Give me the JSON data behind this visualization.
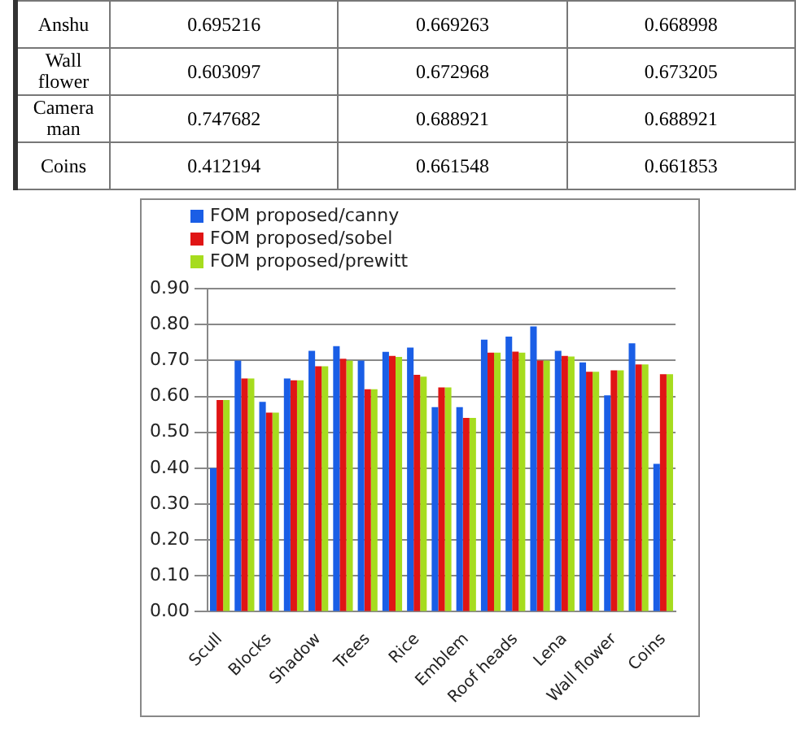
{
  "chart_data": [
    {
      "type": "other",
      "categories": [
        "Anshu",
        "Wall flower",
        "Camera man",
        "Coins"
      ],
      "series": [
        {
          "values": [
            0.695216,
            0.603097,
            0.747682,
            0.412194
          ]
        },
        {
          "values": [
            0.669263,
            0.672968,
            0.688921,
            0.661548
          ]
        },
        {
          "values": [
            0.668998,
            0.673205,
            0.688921,
            0.661853
          ]
        }
      ],
      "data_labels": true
    },
    {
      "type": "bar",
      "categories": [
        "Scull",
        null,
        "Blocks",
        null,
        "Shadow",
        null,
        "Trees",
        null,
        "Rice",
        null,
        "Emblem",
        null,
        "Roof heads",
        null,
        "Lena",
        null,
        "Wall flower",
        null,
        "Coins"
      ],
      "series": [
        {
          "name": "FOM proposed/canny",
          "color": "#1a5ee6",
          "values": [
            0.4,
            0.7,
            0.585,
            0.65,
            0.727,
            0.74,
            0.7,
            0.724,
            0.736,
            0.57,
            0.57,
            0.758,
            0.767,
            0.795,
            0.727,
            0.695,
            0.603,
            0.748,
            0.412
          ]
        },
        {
          "name": "FOM proposed/sobel",
          "color": "#e01515",
          "values": [
            0.59,
            0.65,
            0.555,
            0.645,
            0.684,
            0.705,
            0.62,
            0.713,
            0.66,
            0.625,
            0.54,
            0.722,
            0.725,
            0.7,
            0.713,
            0.669,
            0.673,
            0.689,
            0.662
          ]
        },
        {
          "name": "FOM proposed/prewitt",
          "color": "#a6dc1e",
          "values": [
            0.59,
            0.65,
            0.555,
            0.645,
            0.684,
            0.7,
            0.62,
            0.71,
            0.655,
            0.625,
            0.54,
            0.722,
            0.722,
            0.7,
            0.711,
            0.669,
            0.673,
            0.689,
            0.662
          ]
        }
      ],
      "ylim": [
        0,
        0.9
      ],
      "yticks": [
        {
          "value": 0,
          "label": "0.00"
        },
        {
          "value": 0.1,
          "label": "0.10"
        },
        {
          "value": 0.2,
          "label": "0.20"
        },
        {
          "value": 0.3,
          "label": "0.30"
        },
        {
          "value": 0.4,
          "label": "0.40"
        },
        {
          "value": 0.5,
          "label": "0.50"
        },
        {
          "value": 0.6,
          "label": "0.60"
        },
        {
          "value": 0.7,
          "label": "0.70"
        },
        {
          "value": 0.8,
          "label": "0.80"
        },
        {
          "value": 0.9,
          "label": "0.90"
        }
      ],
      "grid": "y",
      "legend": "top left"
    }
  ]
}
